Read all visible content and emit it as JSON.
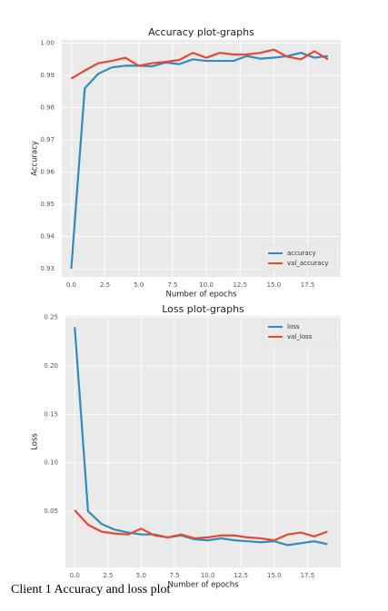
{
  "caption": "Client 1 Accuracy and loss plot",
  "chart_data": [
    {
      "type": "line",
      "title": "Accuracy plot-graphs",
      "xlabel": "Number of epochs",
      "ylabel": "Accuracy",
      "x": [
        0,
        1,
        2,
        3,
        4,
        5,
        6,
        7,
        8,
        9,
        10,
        11,
        12,
        13,
        14,
        15,
        16,
        17,
        18,
        19
      ],
      "series": [
        {
          "name": "accuracy",
          "color": "#348ABD",
          "values": [
            0.93,
            0.986,
            0.9905,
            0.9925,
            0.993,
            0.993,
            0.9928,
            0.994,
            0.9935,
            0.995,
            0.9945,
            0.9945,
            0.9945,
            0.996,
            0.9952,
            0.9955,
            0.996,
            0.997,
            0.9955,
            0.996
          ]
        },
        {
          "name": "val_accuracy",
          "color": "#E24A33",
          "values": [
            0.989,
            0.9915,
            0.9938,
            0.9945,
            0.9955,
            0.993,
            0.9938,
            0.9942,
            0.9948,
            0.997,
            0.9955,
            0.997,
            0.9965,
            0.9965,
            0.997,
            0.998,
            0.9958,
            0.995,
            0.9975,
            0.995
          ]
        }
      ],
      "xlim": [
        -0.7,
        19.95
      ],
      "ylim": [
        0.9275,
        1.001
      ],
      "xticks": [
        {
          "value": 0,
          "label": "0.0"
        },
        2.5,
        {
          "value": 5,
          "label": "5.0"
        },
        7.5,
        {
          "value": 10,
          "label": "10.0"
        },
        12.5,
        {
          "value": 15,
          "label": "15.0"
        },
        17.5
      ],
      "yticks": [
        0.93,
        0.94,
        0.95,
        0.96,
        0.97,
        0.98,
        0.99,
        {
          "value": 1,
          "label": "1.00"
        }
      ],
      "grid": true,
      "legend": "lower right"
    },
    {
      "type": "line",
      "title": "Loss plot-graphs",
      "xlabel": "Number of epochs",
      "ylabel": "Loss",
      "x": [
        0,
        1,
        2,
        3,
        4,
        5,
        6,
        7,
        8,
        9,
        10,
        11,
        12,
        13,
        14,
        15,
        16,
        17,
        18,
        19
      ],
      "series": [
        {
          "name": "loss",
          "color": "#348ABD",
          "values": [
            0.24,
            0.05,
            0.037,
            0.031,
            0.028,
            0.026,
            0.026,
            0.023,
            0.025,
            0.021,
            0.02,
            0.022,
            0.02,
            0.019,
            0.018,
            0.019,
            0.015,
            0.017,
            0.019,
            0.016
          ]
        },
        {
          "name": "val_loss",
          "color": "#E24A33",
          "values": [
            0.051,
            0.036,
            0.029,
            0.027,
            0.026,
            0.032,
            0.025,
            0.023,
            0.026,
            0.022,
            0.023,
            0.025,
            0.025,
            0.023,
            0.022,
            0.02,
            0.026,
            0.028,
            0.024,
            0.029
          ]
        }
      ],
      "xlim": [
        -0.7,
        20
      ],
      "ylim": [
        -0.008,
        0.2515
      ],
      "xticks": [
        {
          "value": 0,
          "label": "0.0"
        },
        2.5,
        {
          "value": 5,
          "label": "5.0"
        },
        7.5,
        {
          "value": 10,
          "label": "10.0"
        },
        12.5,
        {
          "value": 15,
          "label": "15.0"
        },
        17.5
      ],
      "yticks": [
        0.05,
        {
          "value": 0.1,
          "label": "0.10"
        },
        0.15,
        {
          "value": 0.2,
          "label": "0.20"
        },
        0.25
      ],
      "grid": true,
      "legend": "upper right"
    }
  ]
}
